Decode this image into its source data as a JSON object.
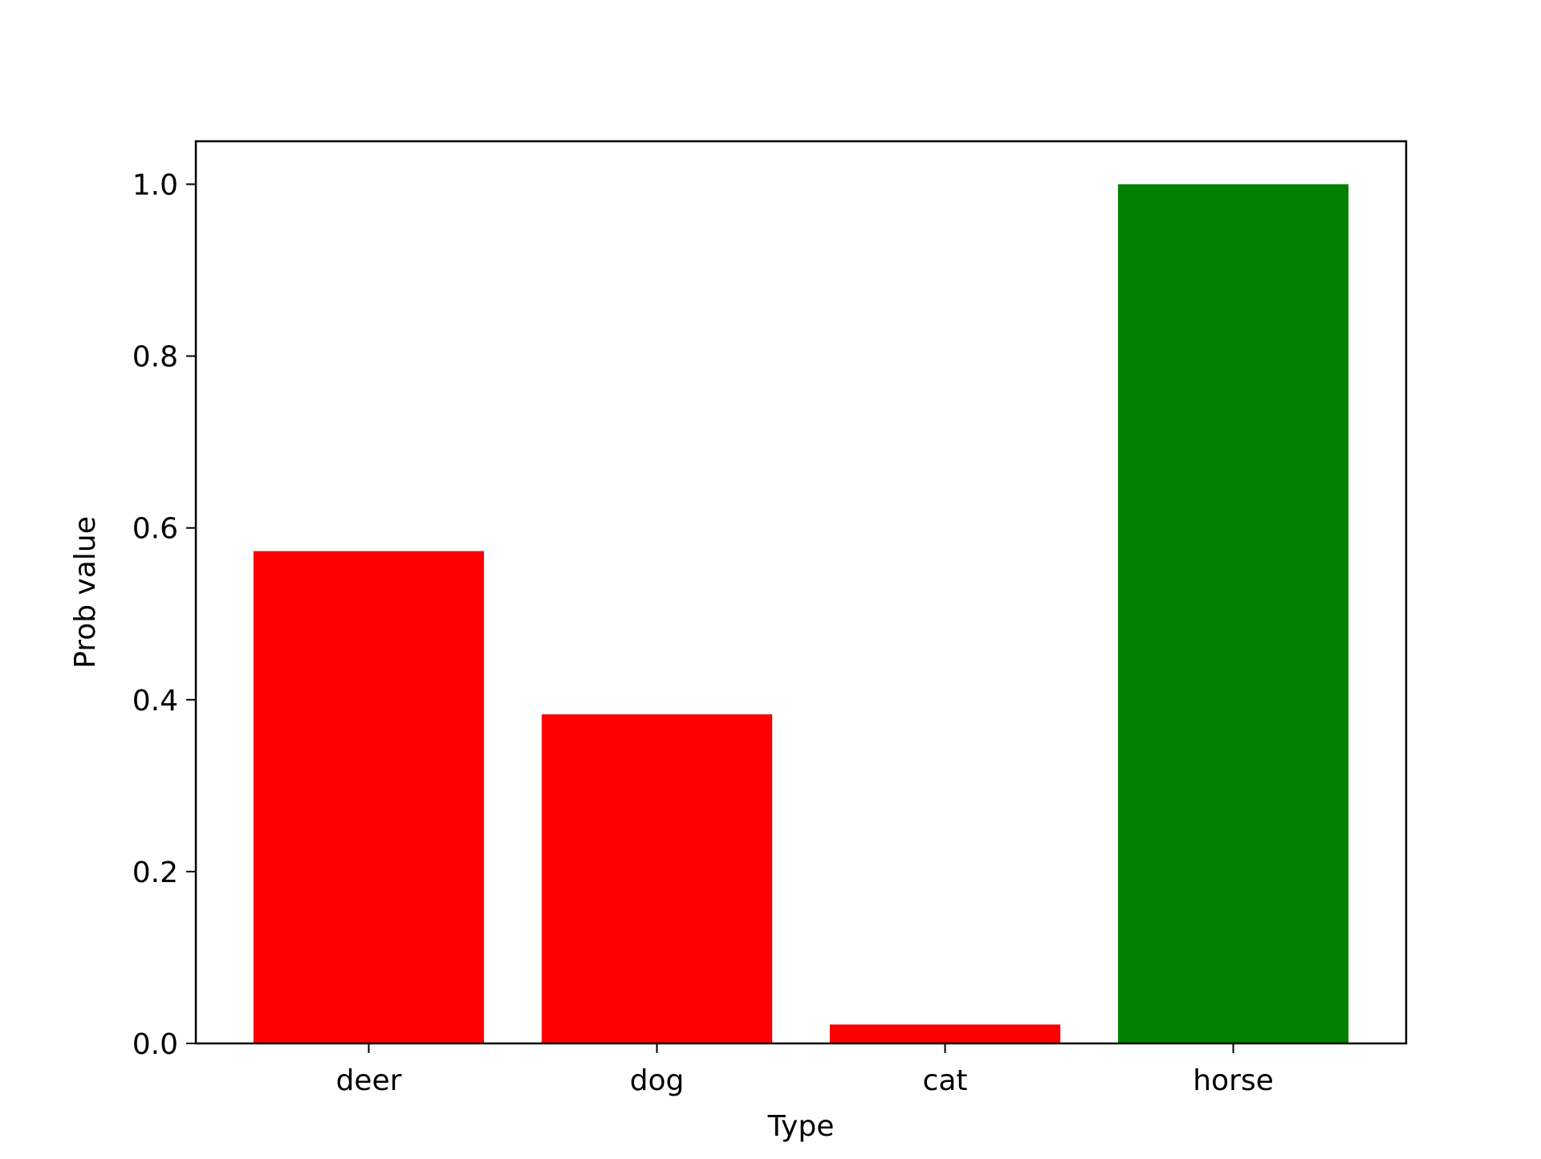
{
  "chart_data": {
    "type": "bar",
    "categories": [
      "deer",
      "dog",
      "cat",
      "horse"
    ],
    "values": [
      0.573,
      0.383,
      0.022,
      1.0
    ],
    "bar_colors": [
      "#ff0000",
      "#ff0000",
      "#ff0000",
      "#008000"
    ],
    "title": "",
    "xlabel": "Type",
    "ylabel": "Prob value",
    "ylim": [
      0,
      1.05
    ],
    "yticks": [
      0.0,
      0.2,
      0.4,
      0.6,
      0.8,
      1.0
    ],
    "ytick_labels": [
      "0.0",
      "0.2",
      "0.4",
      "0.6",
      "0.8",
      "1.0"
    ],
    "grid": false,
    "legend": "none"
  }
}
